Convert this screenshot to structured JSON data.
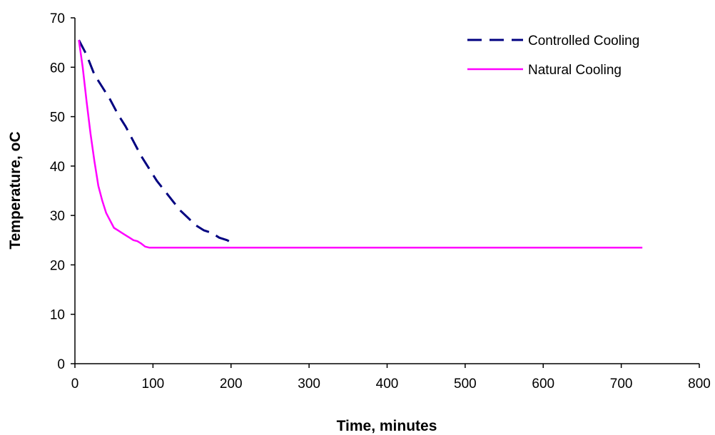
{
  "chart_data": {
    "type": "line",
    "title": "",
    "xlabel": "Time, minutes",
    "ylabel": "Temperature, oC",
    "xlim": [
      0,
      800
    ],
    "ylim": [
      0,
      70
    ],
    "x_ticks": [
      "0",
      "100",
      "200",
      "300",
      "400",
      "500",
      "600",
      "700",
      "800"
    ],
    "y_ticks": [
      "0",
      "10",
      "20",
      "30",
      "40",
      "50",
      "60",
      "70"
    ],
    "grid": false,
    "legend": "top-right",
    "series": [
      {
        "name": "Controlled Cooling",
        "color": "#000080",
        "style": "dashed",
        "x": [
          5,
          15,
          25,
          35,
          45,
          55,
          65,
          75,
          85,
          95,
          105,
          115,
          125,
          135,
          145,
          155,
          165,
          175,
          185,
          195,
          203
        ],
        "y": [
          65.5,
          62.5,
          58.5,
          56,
          53.5,
          50.5,
          48,
          45,
          42,
          39.5,
          37,
          35,
          33,
          31,
          29.5,
          28,
          27,
          26.5,
          25.5,
          25,
          24.3
        ]
      },
      {
        "name": "Natural Cooling",
        "color": "#ff00ff",
        "style": "solid",
        "x": [
          5,
          10,
          15,
          20,
          25,
          30,
          35,
          40,
          45,
          50,
          55,
          60,
          65,
          70,
          75,
          80,
          85,
          90,
          95,
          727
        ],
        "y": [
          65.5,
          60,
          53,
          46.5,
          41,
          36,
          33,
          30.5,
          29,
          27.5,
          27,
          26.5,
          26,
          25.5,
          25,
          24.8,
          24.3,
          23.7,
          23.5,
          23.5
        ]
      }
    ]
  }
}
